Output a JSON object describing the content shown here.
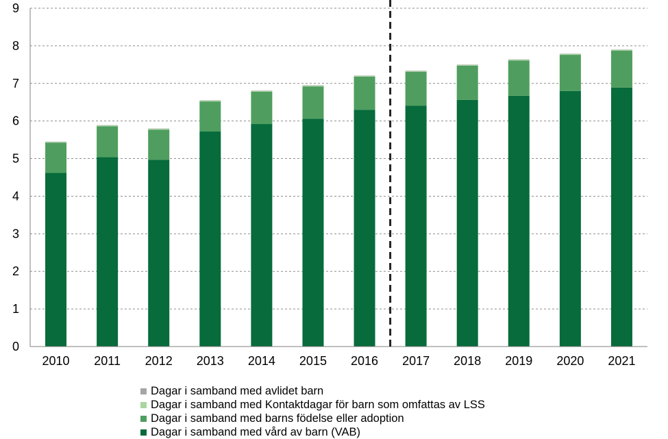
{
  "chart_data": {
    "type": "bar",
    "stacked": true,
    "categories": [
      "2010",
      "2011",
      "2012",
      "2013",
      "2014",
      "2015",
      "2016",
      "2017",
      "2018",
      "2019",
      "2020",
      "2021"
    ],
    "series": [
      {
        "name": "Dagar i samband med vård av  barn (VAB)",
        "color": "#076b3b",
        "values": [
          4.62,
          5.04,
          4.97,
          5.72,
          5.92,
          6.06,
          6.3,
          6.41,
          6.56,
          6.67,
          6.8,
          6.89
        ]
      },
      {
        "name": "Dagar i samband med barns födelse eller adoption",
        "color": "#4f9e5f",
        "values": [
          0.8,
          0.82,
          0.8,
          0.8,
          0.86,
          0.86,
          0.88,
          0.9,
          0.91,
          0.94,
          0.96,
          0.98
        ]
      },
      {
        "name": "Dagar i samband med Kontaktdagar för barn som omfattas av LSS",
        "color": "#a9d69f",
        "values": [
          0.02,
          0.02,
          0.02,
          0.02,
          0.02,
          0.02,
          0.02,
          0.02,
          0.02,
          0.02,
          0.02,
          0.02
        ]
      },
      {
        "name": "Dagar i samband med avlidet barn",
        "color": "#a6a6a6",
        "values": [
          0.01,
          0.01,
          0.01,
          0.01,
          0.01,
          0.01,
          0.01,
          0.01,
          0.01,
          0.01,
          0.01,
          0.01
        ]
      }
    ],
    "ylim": [
      0,
      9
    ],
    "yticks": [
      "0",
      "1",
      "2",
      "3",
      "4",
      "5",
      "6",
      "7",
      "8",
      "9"
    ],
    "grid": true,
    "divider_after_category": "2016",
    "legend_position": "bottom",
    "legend_order": [
      3,
      2,
      1,
      0
    ],
    "title": "",
    "xlabel": "",
    "ylabel": ""
  }
}
